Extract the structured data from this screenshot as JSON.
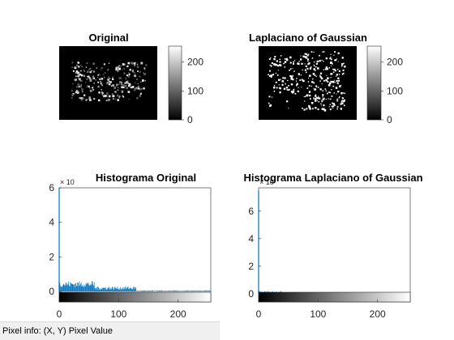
{
  "chart_data": [
    {
      "type": "image",
      "title": "Original",
      "colorbar_ticks": [
        "0",
        "100",
        "200"
      ],
      "colorbar_range": [
        0,
        255
      ]
    },
    {
      "type": "image",
      "title": "Laplaciano of Gaussian",
      "colorbar_ticks": [
        "0",
        "100",
        "200"
      ],
      "colorbar_range": [
        0,
        255
      ]
    },
    {
      "type": "bar",
      "title": "Histograma Original",
      "x_ticks": [
        "0",
        "100",
        "200"
      ],
      "y_ticks": [
        "0",
        "2",
        "4",
        "6"
      ],
      "y_exponent": "× 10",
      "xlim": [
        0,
        255
      ],
      "ylim": [
        -0.6,
        6.0
      ],
      "peak": {
        "x": 0,
        "y": 6.0
      },
      "series_color": "#0072bd"
    },
    {
      "type": "bar",
      "title": "Histograma Laplaciano of Gaussian",
      "x_ticks": [
        "0",
        "100",
        "200"
      ],
      "y_ticks": [
        "0",
        "2",
        "4",
        "6"
      ],
      "y_exponent": "× 10",
      "xlim": [
        0,
        255
      ],
      "ylim": [
        -0.6,
        7.7
      ],
      "peak": {
        "x": 0,
        "y": 7.5
      },
      "series_color": "#0072bd"
    }
  ],
  "statusbar": {
    "text": "Pixel info: (X, Y)  Pixel Value"
  }
}
